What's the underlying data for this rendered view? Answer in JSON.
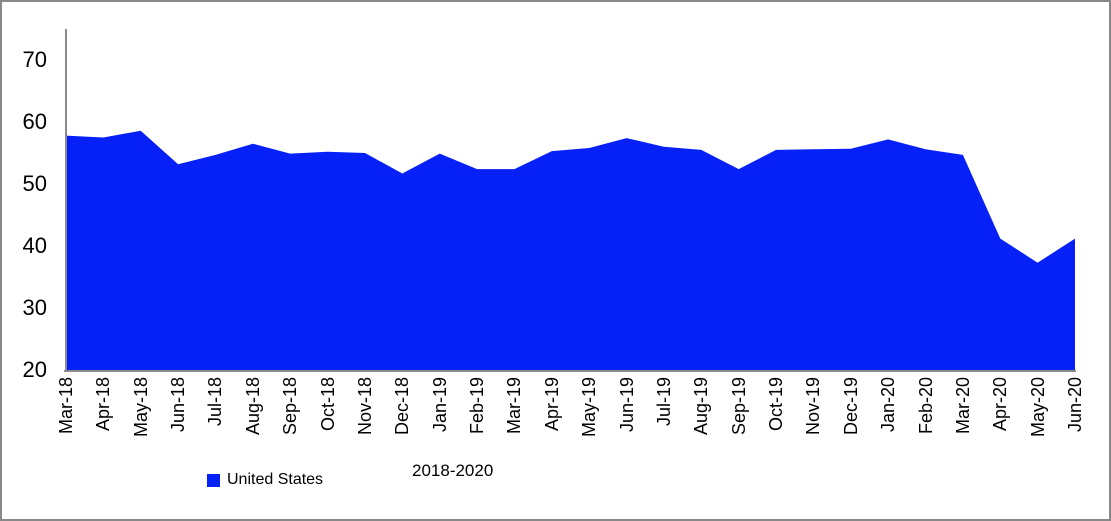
{
  "chart_data": {
    "type": "area",
    "title": "",
    "xlabel": "",
    "ylabel": "",
    "caption": "2018-2020",
    "legend_position": "bottom",
    "grid": false,
    "ylim": [
      20,
      75
    ],
    "yticks": [
      70,
      60,
      50,
      40,
      30,
      20
    ],
    "categories": [
      "Mar-18",
      "Apr-18",
      "May-18",
      "Jun-18",
      "Jul-18",
      "Aug-18",
      "Sep-18",
      "Oct-18",
      "Nov-18",
      "Dec-18",
      "Jan-19",
      "Feb-19",
      "Mar-19",
      "Apr-19",
      "May-19",
      "Jun-19",
      "Jul-19",
      "Aug-19",
      "Sep-19",
      "Oct-19",
      "Nov-19",
      "Dec-19",
      "Jan-20",
      "Feb-20",
      "Mar-20",
      "Apr-20",
      "May-20",
      "Jun-20"
    ],
    "series": [
      {
        "name": "United States",
        "values": [
          57.8,
          57.5,
          58.6,
          53.2,
          54.7,
          56.5,
          54.9,
          55.2,
          55.0,
          51.7,
          54.9,
          52.4,
          52.4,
          55.3,
          55.8,
          57.4,
          56.0,
          55.5,
          52.4,
          55.5,
          55.6,
          55.7,
          57.2,
          55.6,
          54.7,
          41.2,
          37.3,
          41.2
        ]
      }
    ],
    "legend": [
      {
        "label": "United States",
        "color": "#0621f8"
      }
    ],
    "colors": {
      "area": "#0621f8",
      "axis": "#8a8a8a",
      "text": "#000000",
      "frame": "#888888",
      "background": "#ffffff"
    }
  }
}
